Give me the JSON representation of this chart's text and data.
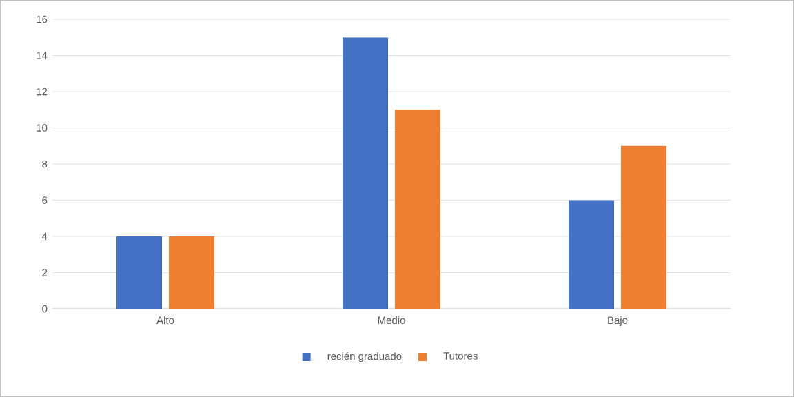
{
  "chart_data": {
    "type": "bar",
    "categories": [
      "Alto",
      "Medio",
      "Bajo"
    ],
    "series": [
      {
        "name": "recién graduado",
        "color": "#4472c4",
        "values": [
          4,
          15,
          6
        ]
      },
      {
        "name": "Tutores",
        "color": "#ed7d31",
        "values": [
          4,
          11,
          9
        ]
      }
    ],
    "ylim": [
      0,
      16
    ],
    "yticks": [
      0,
      2,
      4,
      6,
      8,
      10,
      12,
      14,
      16
    ],
    "grid": "y",
    "legend": "bottom"
  }
}
